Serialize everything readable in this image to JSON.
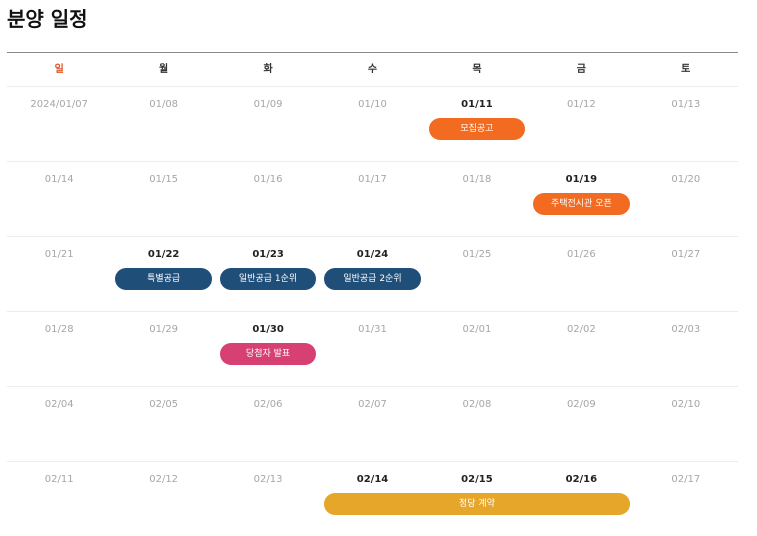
{
  "title": "분양 일정",
  "colors": {
    "orange": "#f36b21",
    "navy": "#1f4e79",
    "pink": "#d64072",
    "gold": "#e6a62a",
    "sunday": "#e0562a"
  },
  "weekdays": [
    "일",
    "월",
    "화",
    "수",
    "목",
    "금",
    "토"
  ],
  "weeks": [
    {
      "days": [
        {
          "label": "2024/01/07",
          "active": false
        },
        {
          "label": "01/08",
          "active": false
        },
        {
          "label": "01/09",
          "active": false
        },
        {
          "label": "01/10",
          "active": false
        },
        {
          "label": "01/11",
          "active": true
        },
        {
          "label": "01/12",
          "active": false
        },
        {
          "label": "01/13",
          "active": false
        }
      ],
      "events": [
        {
          "label": "모집공고",
          "start": 4,
          "span": 1,
          "color": "orange"
        }
      ]
    },
    {
      "days": [
        {
          "label": "01/14",
          "active": false
        },
        {
          "label": "01/15",
          "active": false
        },
        {
          "label": "01/16",
          "active": false
        },
        {
          "label": "01/17",
          "active": false
        },
        {
          "label": "01/18",
          "active": false
        },
        {
          "label": "01/19",
          "active": true
        },
        {
          "label": "01/20",
          "active": false
        }
      ],
      "events": [
        {
          "label": "주택전시관 오픈",
          "start": 5,
          "span": 1,
          "color": "orange"
        }
      ]
    },
    {
      "days": [
        {
          "label": "01/21",
          "active": false
        },
        {
          "label": "01/22",
          "active": true
        },
        {
          "label": "01/23",
          "active": true
        },
        {
          "label": "01/24",
          "active": true
        },
        {
          "label": "01/25",
          "active": false
        },
        {
          "label": "01/26",
          "active": false
        },
        {
          "label": "01/27",
          "active": false
        }
      ],
      "events": [
        {
          "label": "특별공급",
          "start": 1,
          "span": 1,
          "color": "navy"
        },
        {
          "label": "일반공급 1순위",
          "start": 2,
          "span": 1,
          "color": "navy"
        },
        {
          "label": "일반공급 2순위",
          "start": 3,
          "span": 1,
          "color": "navy"
        }
      ]
    },
    {
      "days": [
        {
          "label": "01/28",
          "active": false
        },
        {
          "label": "01/29",
          "active": false
        },
        {
          "label": "01/30",
          "active": true
        },
        {
          "label": "01/31",
          "active": false
        },
        {
          "label": "02/01",
          "active": false
        },
        {
          "label": "02/02",
          "active": false
        },
        {
          "label": "02/03",
          "active": false
        }
      ],
      "events": [
        {
          "label": "당첨자 발표",
          "start": 2,
          "span": 1,
          "color": "pink"
        }
      ]
    },
    {
      "days": [
        {
          "label": "02/04",
          "active": false
        },
        {
          "label": "02/05",
          "active": false
        },
        {
          "label": "02/06",
          "active": false
        },
        {
          "label": "02/07",
          "active": false
        },
        {
          "label": "02/08",
          "active": false
        },
        {
          "label": "02/09",
          "active": false
        },
        {
          "label": "02/10",
          "active": false
        }
      ],
      "events": []
    },
    {
      "days": [
        {
          "label": "02/11",
          "active": false
        },
        {
          "label": "02/12",
          "active": false
        },
        {
          "label": "02/13",
          "active": false
        },
        {
          "label": "02/14",
          "active": true
        },
        {
          "label": "02/15",
          "active": true
        },
        {
          "label": "02/16",
          "active": true
        },
        {
          "label": "02/17",
          "active": false
        }
      ],
      "events": [
        {
          "label": "정당 계약",
          "start": 3,
          "span": 3,
          "color": "gold"
        }
      ]
    }
  ]
}
